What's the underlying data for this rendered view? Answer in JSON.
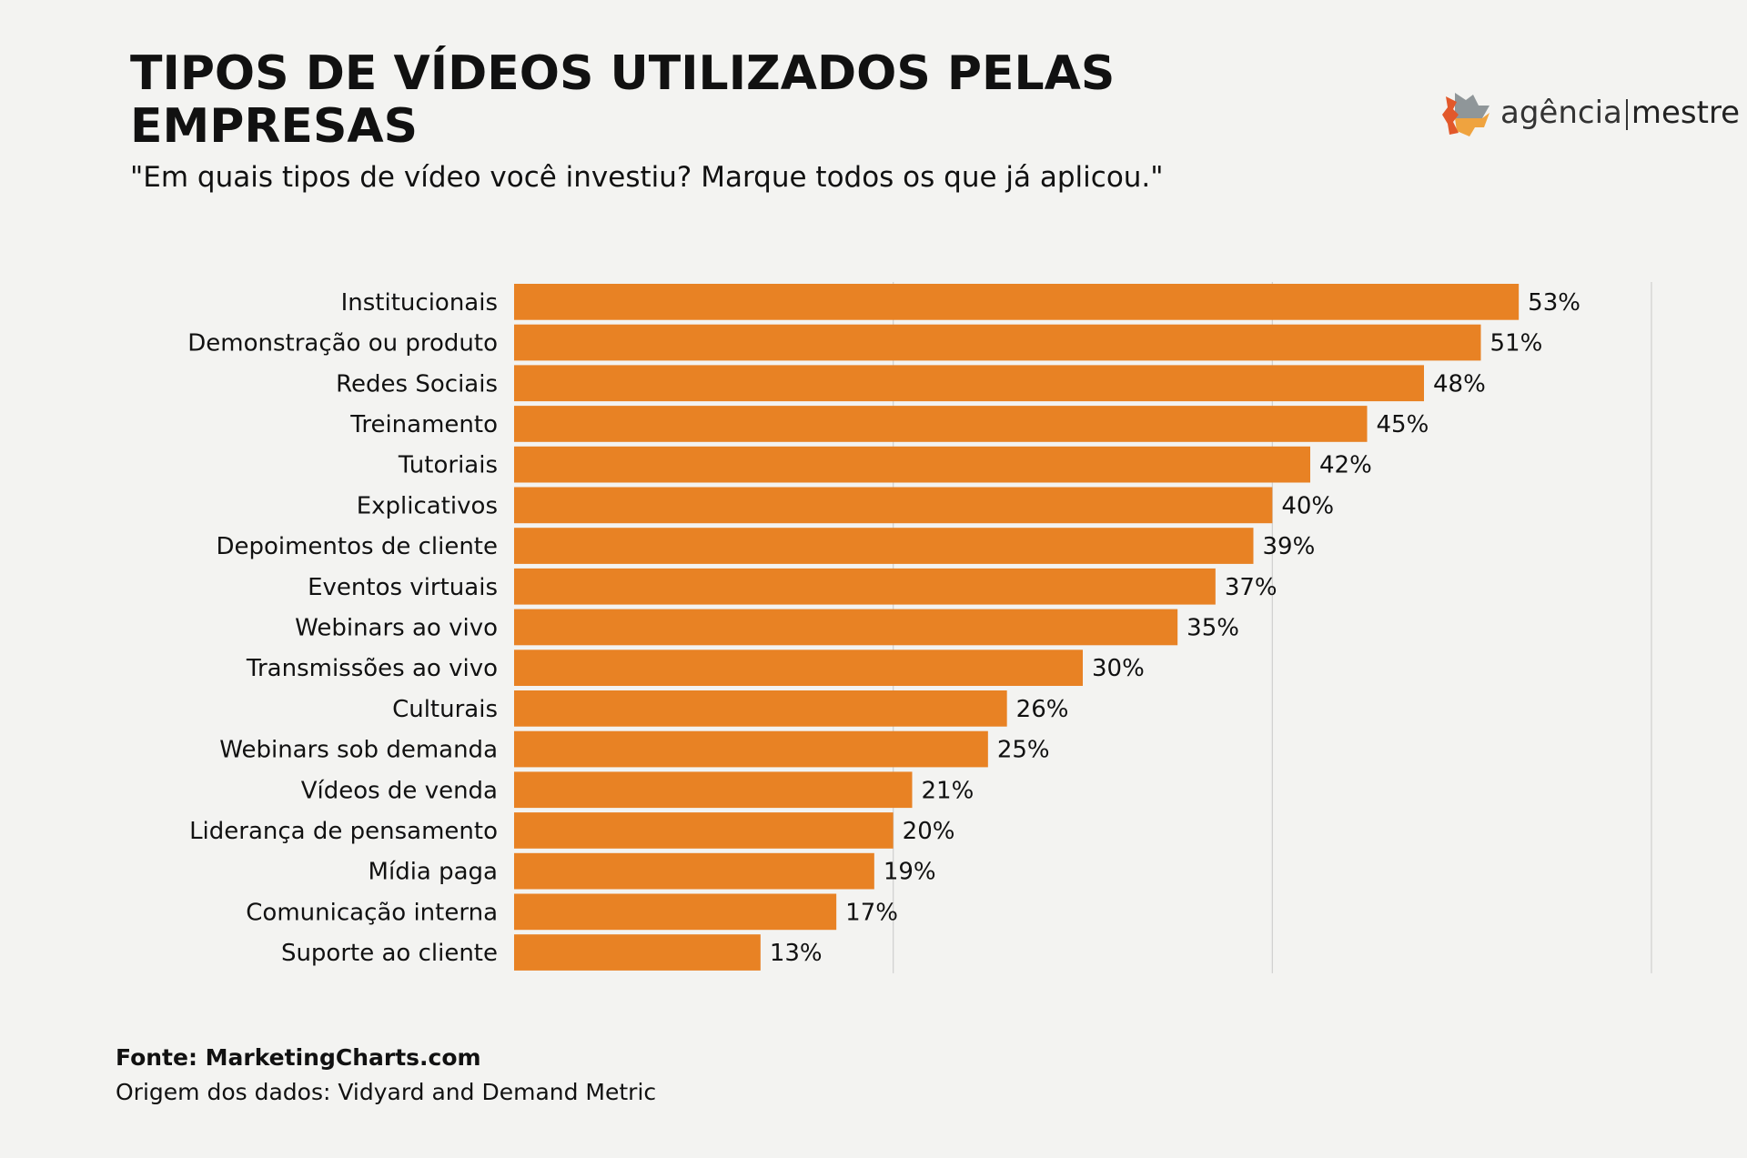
{
  "chart_data": {
    "type": "bar",
    "orientation": "horizontal",
    "title": "TIPOS DE VÍDEOS UTILIZADOS PELAS EMPRESAS",
    "subtitle": "\"Em quais tipos de vídeo você investiu? Marque todos os que já aplicou.\"",
    "categories": [
      "Institucionais",
      "Demonstração ou produto",
      "Redes Sociais",
      "Treinamento",
      "Tutoriais",
      "Explicativos",
      "Depoimentos de cliente",
      "Eventos virtuais",
      "Webinars ao vivo",
      "Transmissões ao vivo",
      "Culturais",
      "Webinars sob demanda",
      "Vídeos de venda",
      "Liderança de pensamento",
      "Mídia paga",
      "Comunicação interna",
      "Suporte ao cliente"
    ],
    "values": [
      53,
      51,
      48,
      45,
      42,
      40,
      39,
      37,
      35,
      30,
      26,
      25,
      21,
      20,
      19,
      17,
      13
    ],
    "data_labels": [
      "53%",
      "51%",
      "48%",
      "45%",
      "42%",
      "40%",
      "39%",
      "37%",
      "35%",
      "30%",
      "26%",
      "25%",
      "21%",
      "20%",
      "19%",
      "17%",
      "13%"
    ],
    "xlim": [
      0,
      60
    ],
    "gridlines": [
      20,
      40,
      60
    ],
    "grid": true,
    "bar_color": "#e88224",
    "xlabel": "",
    "ylabel": ""
  },
  "source": "Fonte: MarketingCharts.com",
  "origin": "Origem dos dados: Vidyard and Demand Metric",
  "logo": {
    "text_left": "agência",
    "text_right": "mestre",
    "colors": [
      "#e2582a",
      "#efa33f",
      "#8f9699"
    ]
  }
}
